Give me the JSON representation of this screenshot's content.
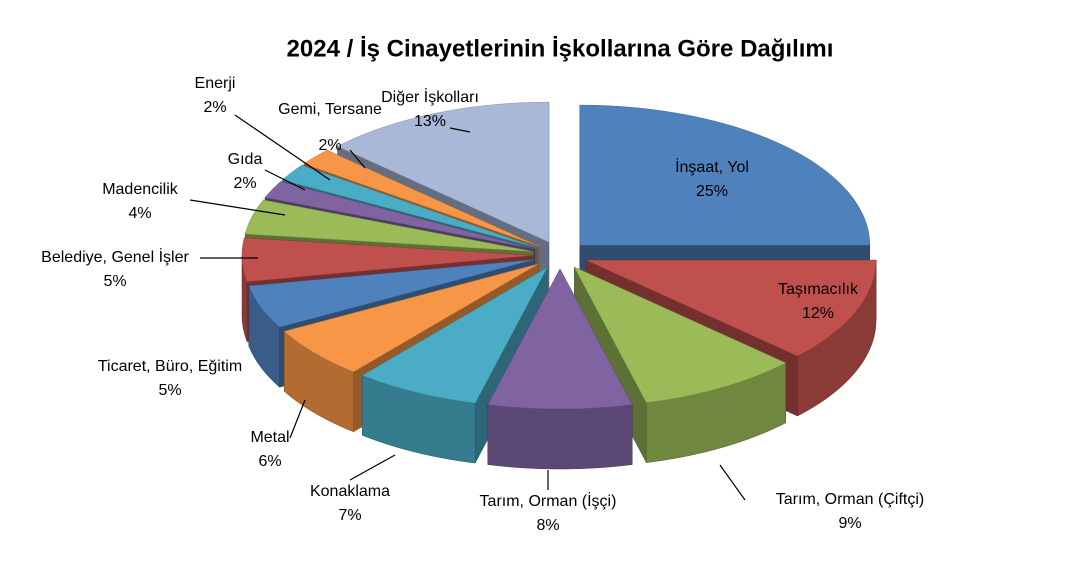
{
  "chart_data": {
    "type": "pie3d",
    "title": "2024 / İş Cinayetlerinin İşkollarına Göre Dağılımı",
    "categories": [
      "İnşaat, Yol",
      "Taşımacılık",
      "Tarım, Orman (Çiftçi)",
      "Tarım, Orman (İşçi)",
      "Konaklama",
      "Metal",
      "Ticaret, Büro, Eğitim",
      "Belediye, Genel İşler",
      "Madencilik",
      "Gıda",
      "Enerji",
      "Gemi, Tersane",
      "Diğer İşkolları"
    ],
    "values": [
      25,
      12,
      9,
      8,
      7,
      6,
      5,
      5,
      4,
      2,
      2,
      2,
      13
    ],
    "value_labels": [
      "25%",
      "12%",
      "9%",
      "8%",
      "7%",
      "6%",
      "5%",
      "5%",
      "4%",
      "2%",
      "2%",
      "2%",
      "13%"
    ],
    "colors": [
      "#4F81BD",
      "#C0504D",
      "#9BBB59",
      "#8064A2",
      "#4BACC6",
      "#F79646",
      "#4F81BD",
      "#C0504D",
      "#9BBB59",
      "#8064A2",
      "#4BACC6",
      "#F79646",
      "#A9B8D6"
    ]
  }
}
